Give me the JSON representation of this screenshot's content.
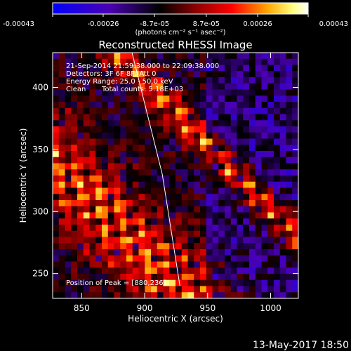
{
  "chart_data": {
    "type": "heatmap",
    "title": "Reconstructed RHESSI Image",
    "xlabel": "Heliocentric X (arcsec)",
    "ylabel": "Heliocentric Y (arcsec)",
    "xlim": [
      827,
      1022
    ],
    "ylim": [
      230,
      428
    ],
    "x_ticks": [
      850,
      900,
      950,
      1000
    ],
    "y_ticks": [
      250,
      300,
      350,
      400
    ],
    "colorbar": {
      "range": [
        -0.00043,
        0.00043
      ],
      "tick_values": [
        -0.00043,
        -0.00026,
        -8.7e-05,
        8.7e-05,
        0.00026,
        0.00043
      ],
      "tick_labels": [
        "-0.00043",
        "-0.00026",
        "-8.7e-05",
        "8.7e-05",
        "0.00026",
        "0.00043"
      ],
      "unit_label": "(photons cm⁻² s⁻¹ asec⁻²)",
      "colors": [
        "#0000ff",
        "#4b00b4",
        "#000000",
        "#8b0000",
        "#ff0000",
        "#ffa500",
        "#ffff80",
        "#ffffff"
      ]
    },
    "annotations": {
      "time": "21-Sep-2014 21:59:38.000 to 22:09:38.000",
      "detectors": "Detectors: 3F 6F 8F, Att 0",
      "energy": "Energy Range: 25.0 - 50.0 keV",
      "method": "Clean",
      "counts": "Total counts: 5.18E+03",
      "peak": "Position of Peak = [880,236]"
    },
    "limb_line": {
      "x": [
        890,
        914,
        928
      ],
      "y": [
        428,
        330,
        240
      ]
    }
  },
  "footer": {
    "timestamp": "13-May-2017 18:50"
  }
}
